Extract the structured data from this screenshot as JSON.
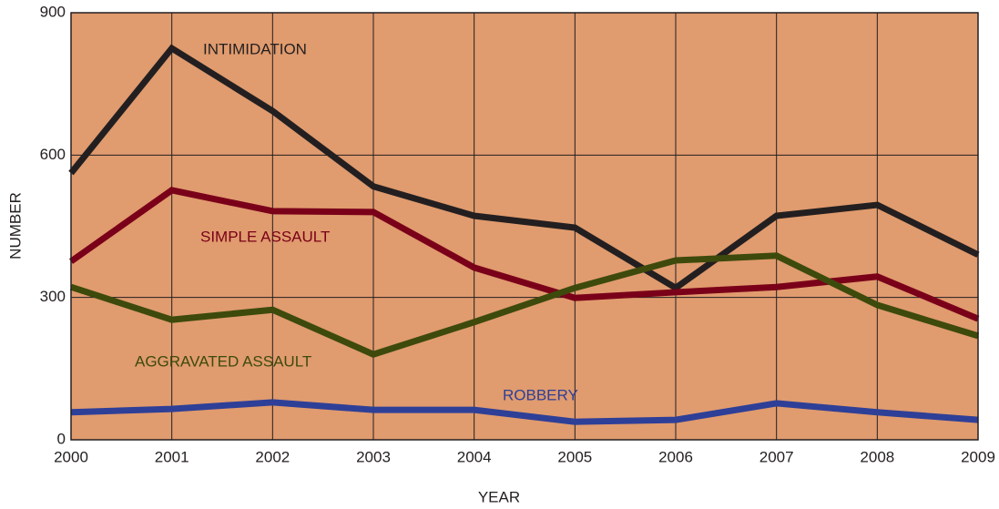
{
  "chart_data": {
    "type": "line",
    "x": [
      2000,
      2001,
      2002,
      2003,
      2004,
      2005,
      2006,
      2007,
      2008,
      2009
    ],
    "xlim": [
      2000,
      2009
    ],
    "xticks": [
      2000,
      2001,
      2002,
      2003,
      2004,
      2005,
      2006,
      2007,
      2008,
      2009
    ],
    "ylim": [
      0,
      900
    ],
    "yticks": [
      0,
      300,
      600,
      900
    ],
    "grid": true,
    "x_label": "YEAR",
    "y_label": "NUMBER",
    "background": "#e09b6e",
    "series": [
      {
        "name": "INTIMIDATION",
        "color": "#231f20",
        "values": [
          562,
          825,
          693,
          534,
          472,
          447,
          320,
          472,
          495,
          390
        ]
      },
      {
        "name": "SIMPLE ASSAULT",
        "color": "#7a0019",
        "values": [
          376,
          526,
          482,
          480,
          363,
          299,
          311,
          322,
          344,
          255
        ]
      },
      {
        "name": "AGGRAVATED ASSAULT",
        "color": "#3d4a0c",
        "values": [
          322,
          253,
          274,
          180,
          248,
          320,
          378,
          388,
          284,
          219
        ]
      },
      {
        "name": "ROBBERY",
        "color": "#2e3f97",
        "values": [
          58,
          65,
          79,
          63,
          63,
          38,
          42,
          77,
          58,
          42
        ]
      }
    ]
  }
}
